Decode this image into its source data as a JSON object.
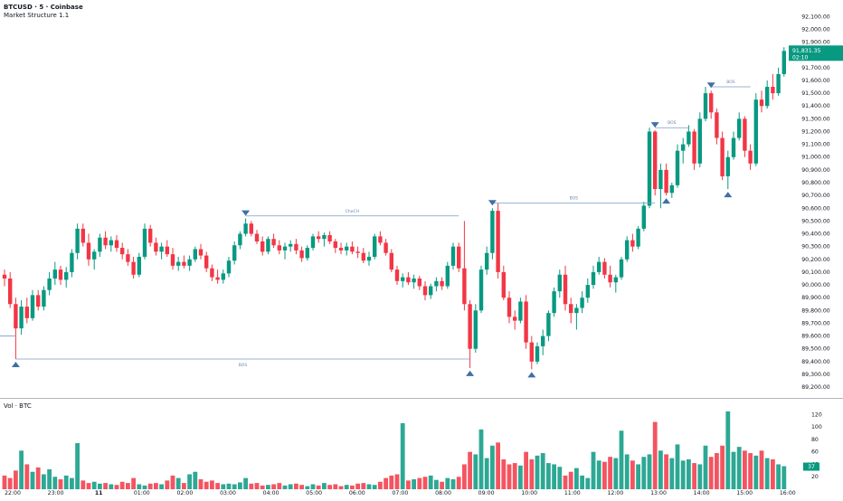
{
  "header": {
    "title": "BTCUSD · 5 · Coinbase",
    "indicator": "Market Structure 1.1",
    "volume_label": "Vol · BTC"
  },
  "price_badge": {
    "value": "91,831.35",
    "countdown": "02:10",
    "price": 91831.35,
    "color": "#089981"
  },
  "volume_badge": {
    "value": "37",
    "volume": 37
  },
  "colors": {
    "up": "#089981",
    "down": "#f23645",
    "structure_line": "#7a9cc6",
    "marker": "#3f6fa8",
    "grid_text": "#131722"
  },
  "chart_data": [
    {
      "type": "candlestick",
      "symbol": "BTCUSD",
      "interval": "5",
      "exchange": "Coinbase",
      "y_axis": {
        "ticks": [
          "92,100.00",
          "92,000.00",
          "91,900.00",
          "91,800.00",
          "91,700.00",
          "91,600.00",
          "91,500.00",
          "91,400.00",
          "91,300.00",
          "91,200.00",
          "91,100.00",
          "91,000.00",
          "90,900.00",
          "90,800.00",
          "90,700.00",
          "90,600.00",
          "90,500.00",
          "90,400.00",
          "90,300.00",
          "90,200.00",
          "90,100.00",
          "90,000.00",
          "89,900.00",
          "89,800.00",
          "89,700.00",
          "89,600.00",
          "89,500.00",
          "89,400.00",
          "89,300.00",
          "89,200.00"
        ],
        "range": [
          89130,
          92180
        ]
      },
      "x_axis": {
        "ticks": [
          "22:00",
          "23:00",
          "11",
          "01:00",
          "02:00",
          "03:00",
          "04:00",
          "05:00",
          "06:00",
          "07:00",
          "08:00",
          "09:00",
          "10:00",
          "11:00",
          "12:00",
          "13:00",
          "14:00",
          "15:00",
          "16:00"
        ]
      },
      "candles": [
        {
          "o": 90080,
          "h": 90120,
          "l": 89990,
          "c": 90050
        },
        {
          "o": 90050,
          "h": 90100,
          "l": 89820,
          "c": 89850
        },
        {
          "o": 89850,
          "h": 89900,
          "l": 89420,
          "c": 89660
        },
        {
          "o": 89660,
          "h": 89880,
          "l": 89610,
          "c": 89830
        },
        {
          "o": 89830,
          "h": 89900,
          "l": 89700,
          "c": 89740
        },
        {
          "o": 89740,
          "h": 89960,
          "l": 89720,
          "c": 89920
        },
        {
          "o": 89920,
          "h": 89960,
          "l": 89800,
          "c": 89830
        },
        {
          "o": 89830,
          "h": 89990,
          "l": 89800,
          "c": 89960
        },
        {
          "o": 89960,
          "h": 90100,
          "l": 89920,
          "c": 90050
        },
        {
          "o": 90050,
          "h": 90180,
          "l": 90000,
          "c": 90120
        },
        {
          "o": 90120,
          "h": 90150,
          "l": 90000,
          "c": 90040
        },
        {
          "o": 90040,
          "h": 90140,
          "l": 89980,
          "c": 90100
        },
        {
          "o": 90100,
          "h": 90280,
          "l": 90060,
          "c": 90250
        },
        {
          "o": 90250,
          "h": 90480,
          "l": 90200,
          "c": 90440
        },
        {
          "o": 90440,
          "h": 90480,
          "l": 90300,
          "c": 90330
        },
        {
          "o": 90330,
          "h": 90400,
          "l": 90150,
          "c": 90200
        },
        {
          "o": 90200,
          "h": 90280,
          "l": 90120,
          "c": 90260
        },
        {
          "o": 90260,
          "h": 90400,
          "l": 90220,
          "c": 90370
        },
        {
          "o": 90370,
          "h": 90420,
          "l": 90280,
          "c": 90310
        },
        {
          "o": 90310,
          "h": 90380,
          "l": 90260,
          "c": 90350
        },
        {
          "o": 90350,
          "h": 90390,
          "l": 90260,
          "c": 90290
        },
        {
          "o": 90290,
          "h": 90330,
          "l": 90200,
          "c": 90240
        },
        {
          "o": 90240,
          "h": 90280,
          "l": 90150,
          "c": 90180
        },
        {
          "o": 90180,
          "h": 90220,
          "l": 90050,
          "c": 90080
        },
        {
          "o": 90080,
          "h": 90250,
          "l": 90060,
          "c": 90220
        },
        {
          "o": 90220,
          "h": 90480,
          "l": 90200,
          "c": 90440
        },
        {
          "o": 90440,
          "h": 90470,
          "l": 90300,
          "c": 90330
        },
        {
          "o": 90330,
          "h": 90370,
          "l": 90230,
          "c": 90260
        },
        {
          "o": 90260,
          "h": 90330,
          "l": 90200,
          "c": 90300
        },
        {
          "o": 90300,
          "h": 90350,
          "l": 90220,
          "c": 90240
        },
        {
          "o": 90240,
          "h": 90290,
          "l": 90120,
          "c": 90150
        },
        {
          "o": 90150,
          "h": 90220,
          "l": 90110,
          "c": 90180
        },
        {
          "o": 90180,
          "h": 90230,
          "l": 90130,
          "c": 90150
        },
        {
          "o": 90150,
          "h": 90230,
          "l": 90110,
          "c": 90200
        },
        {
          "o": 90200,
          "h": 90300,
          "l": 90180,
          "c": 90280
        },
        {
          "o": 90280,
          "h": 90320,
          "l": 90200,
          "c": 90230
        },
        {
          "o": 90230,
          "h": 90260,
          "l": 90100,
          "c": 90130
        },
        {
          "o": 90130,
          "h": 90160,
          "l": 90030,
          "c": 90060
        },
        {
          "o": 90060,
          "h": 90120,
          "l": 90010,
          "c": 90040
        },
        {
          "o": 90040,
          "h": 90120,
          "l": 90010,
          "c": 90090
        },
        {
          "o": 90090,
          "h": 90220,
          "l": 90060,
          "c": 90190
        },
        {
          "o": 90190,
          "h": 90340,
          "l": 90160,
          "c": 90310
        },
        {
          "o": 90310,
          "h": 90420,
          "l": 90280,
          "c": 90400
        },
        {
          "o": 90400,
          "h": 90520,
          "l": 90380,
          "c": 90480
        },
        {
          "o": 90480,
          "h": 90500,
          "l": 90380,
          "c": 90400
        },
        {
          "o": 90400,
          "h": 90430,
          "l": 90320,
          "c": 90340
        },
        {
          "o": 90340,
          "h": 90380,
          "l": 90230,
          "c": 90260
        },
        {
          "o": 90260,
          "h": 90380,
          "l": 90240,
          "c": 90360
        },
        {
          "o": 90360,
          "h": 90400,
          "l": 90290,
          "c": 90310
        },
        {
          "o": 90310,
          "h": 90350,
          "l": 90240,
          "c": 90270
        },
        {
          "o": 90270,
          "h": 90330,
          "l": 90200,
          "c": 90300
        },
        {
          "o": 90300,
          "h": 90350,
          "l": 90260,
          "c": 90320
        },
        {
          "o": 90320,
          "h": 90360,
          "l": 90240,
          "c": 90270
        },
        {
          "o": 90270,
          "h": 90300,
          "l": 90180,
          "c": 90210
        },
        {
          "o": 90210,
          "h": 90310,
          "l": 90190,
          "c": 90290
        },
        {
          "o": 90290,
          "h": 90400,
          "l": 90270,
          "c": 90380
        },
        {
          "o": 90380,
          "h": 90420,
          "l": 90330,
          "c": 90360
        },
        {
          "o": 90360,
          "h": 90410,
          "l": 90300,
          "c": 90390
        },
        {
          "o": 90390,
          "h": 90420,
          "l": 90320,
          "c": 90340
        },
        {
          "o": 90340,
          "h": 90360,
          "l": 90250,
          "c": 90290
        },
        {
          "o": 90290,
          "h": 90330,
          "l": 90240,
          "c": 90270
        },
        {
          "o": 90270,
          "h": 90330,
          "l": 90230,
          "c": 90300
        },
        {
          "o": 90300,
          "h": 90340,
          "l": 90240,
          "c": 90260
        },
        {
          "o": 90260,
          "h": 90300,
          "l": 90210,
          "c": 90250
        },
        {
          "o": 90250,
          "h": 90290,
          "l": 90170,
          "c": 90190
        },
        {
          "o": 90190,
          "h": 90260,
          "l": 90150,
          "c": 90220
        },
        {
          "o": 90220,
          "h": 90400,
          "l": 90200,
          "c": 90380
        },
        {
          "o": 90380,
          "h": 90420,
          "l": 90310,
          "c": 90330
        },
        {
          "o": 90330,
          "h": 90360,
          "l": 90230,
          "c": 90250
        },
        {
          "o": 90250,
          "h": 90280,
          "l": 90100,
          "c": 90120
        },
        {
          "o": 90120,
          "h": 90150,
          "l": 90000,
          "c": 90030
        },
        {
          "o": 90030,
          "h": 90090,
          "l": 89980,
          "c": 90060
        },
        {
          "o": 90060,
          "h": 90100,
          "l": 90000,
          "c": 90020
        },
        {
          "o": 90020,
          "h": 90080,
          "l": 89970,
          "c": 90050
        },
        {
          "o": 90050,
          "h": 90070,
          "l": 89960,
          "c": 89990
        },
        {
          "o": 89990,
          "h": 90030,
          "l": 89880,
          "c": 89920
        },
        {
          "o": 89920,
          "h": 90010,
          "l": 89890,
          "c": 89990
        },
        {
          "o": 89990,
          "h": 90060,
          "l": 89950,
          "c": 90030
        },
        {
          "o": 90030,
          "h": 90060,
          "l": 89960,
          "c": 89990
        },
        {
          "o": 89990,
          "h": 90180,
          "l": 89970,
          "c": 90150
        },
        {
          "o": 90150,
          "h": 90330,
          "l": 90120,
          "c": 90300
        },
        {
          "o": 90300,
          "h": 90330,
          "l": 90100,
          "c": 90130
        },
        {
          "o": 90130,
          "h": 90500,
          "l": 89800,
          "c": 89850
        },
        {
          "o": 89850,
          "h": 89880,
          "l": 89350,
          "c": 89500
        },
        {
          "o": 89500,
          "h": 89850,
          "l": 89470,
          "c": 89800
        },
        {
          "o": 89800,
          "h": 90150,
          "l": 89780,
          "c": 90120
        },
        {
          "o": 90120,
          "h": 90300,
          "l": 90080,
          "c": 90250
        },
        {
          "o": 90250,
          "h": 90600,
          "l": 90200,
          "c": 90580
        },
        {
          "o": 90580,
          "h": 90640,
          "l": 90050,
          "c": 90100
        },
        {
          "o": 90100,
          "h": 90150,
          "l": 89880,
          "c": 89900
        },
        {
          "o": 89900,
          "h": 89950,
          "l": 89700,
          "c": 89750
        },
        {
          "o": 89750,
          "h": 89800,
          "l": 89650,
          "c": 89720
        },
        {
          "o": 89720,
          "h": 89900,
          "l": 89700,
          "c": 89870
        },
        {
          "o": 89870,
          "h": 89920,
          "l": 89500,
          "c": 89550
        },
        {
          "o": 89550,
          "h": 89600,
          "l": 89340,
          "c": 89400
        },
        {
          "o": 89400,
          "h": 89550,
          "l": 89380,
          "c": 89520
        },
        {
          "o": 89520,
          "h": 89650,
          "l": 89450,
          "c": 89600
        },
        {
          "o": 89600,
          "h": 89800,
          "l": 89560,
          "c": 89780
        },
        {
          "o": 89780,
          "h": 89980,
          "l": 89750,
          "c": 89950
        },
        {
          "o": 89950,
          "h": 90120,
          "l": 89900,
          "c": 90080
        },
        {
          "o": 90080,
          "h": 90150,
          "l": 89800,
          "c": 89850
        },
        {
          "o": 89850,
          "h": 89900,
          "l": 89700,
          "c": 89780
        },
        {
          "o": 89780,
          "h": 89850,
          "l": 89650,
          "c": 89820
        },
        {
          "o": 89820,
          "h": 89950,
          "l": 89780,
          "c": 89900
        },
        {
          "o": 89900,
          "h": 90050,
          "l": 89860,
          "c": 90000
        },
        {
          "o": 90000,
          "h": 90150,
          "l": 89970,
          "c": 90100
        },
        {
          "o": 90100,
          "h": 90220,
          "l": 90080,
          "c": 90180
        },
        {
          "o": 90180,
          "h": 90210,
          "l": 90050,
          "c": 90080
        },
        {
          "o": 90080,
          "h": 90150,
          "l": 89980,
          "c": 90020
        },
        {
          "o": 90020,
          "h": 90080,
          "l": 89940,
          "c": 90060
        },
        {
          "o": 90060,
          "h": 90220,
          "l": 90040,
          "c": 90200
        },
        {
          "o": 90200,
          "h": 90380,
          "l": 90180,
          "c": 90350
        },
        {
          "o": 90350,
          "h": 90400,
          "l": 90260,
          "c": 90300
        },
        {
          "o": 90300,
          "h": 90460,
          "l": 90280,
          "c": 90440
        },
        {
          "o": 90440,
          "h": 90650,
          "l": 90420,
          "c": 90620
        },
        {
          "o": 90620,
          "h": 91230,
          "l": 90600,
          "c": 91200
        },
        {
          "o": 91200,
          "h": 91210,
          "l": 90700,
          "c": 90750
        },
        {
          "o": 90750,
          "h": 90950,
          "l": 90600,
          "c": 90900
        },
        {
          "o": 90900,
          "h": 90950,
          "l": 90700,
          "c": 90720
        },
        {
          "o": 90720,
          "h": 90800,
          "l": 90680,
          "c": 90780
        },
        {
          "o": 90780,
          "h": 91100,
          "l": 90760,
          "c": 91050
        },
        {
          "o": 91050,
          "h": 91150,
          "l": 90950,
          "c": 91100
        },
        {
          "o": 91100,
          "h": 91250,
          "l": 91080,
          "c": 91200
        },
        {
          "o": 91200,
          "h": 91220,
          "l": 90900,
          "c": 90950
        },
        {
          "o": 90950,
          "h": 91350,
          "l": 90920,
          "c": 91300
        },
        {
          "o": 91300,
          "h": 91550,
          "l": 91280,
          "c": 91500
        },
        {
          "o": 91500,
          "h": 91520,
          "l": 91300,
          "c": 91350
        },
        {
          "o": 91350,
          "h": 91380,
          "l": 91100,
          "c": 91150
        },
        {
          "o": 91150,
          "h": 91200,
          "l": 90820,
          "c": 90850
        },
        {
          "o": 90850,
          "h": 91050,
          "l": 90750,
          "c": 91000
        },
        {
          "o": 91000,
          "h": 91200,
          "l": 90980,
          "c": 91150
        },
        {
          "o": 91150,
          "h": 91350,
          "l": 91130,
          "c": 91300
        },
        {
          "o": 91300,
          "h": 91320,
          "l": 91000,
          "c": 91050
        },
        {
          "o": 91050,
          "h": 91100,
          "l": 90900,
          "c": 90950
        },
        {
          "o": 90950,
          "h": 91500,
          "l": 90930,
          "c": 91450
        },
        {
          "o": 91450,
          "h": 91520,
          "l": 91350,
          "c": 91400
        },
        {
          "o": 91400,
          "h": 91600,
          "l": 91380,
          "c": 91550
        },
        {
          "o": 91550,
          "h": 91650,
          "l": 91450,
          "c": 91500
        },
        {
          "o": 91500,
          "h": 91700,
          "l": 91480,
          "c": 91650
        },
        {
          "o": 91650,
          "h": 91860,
          "l": 91630,
          "c": 91831
        }
      ],
      "structure": [
        {
          "label": "BOS",
          "price": 89420,
          "from": 2,
          "to": 83
        },
        {
          "label": "ChoCH",
          "price": 90540,
          "from": 43,
          "to": 81
        },
        {
          "label": "BOS",
          "price": 90640,
          "from": 87,
          "to": 116
        },
        {
          "label": "BOS",
          "price": 91230,
          "from": 116,
          "to": 122
        },
        {
          "label": "BOS",
          "price": 91550,
          "from": 126,
          "to": 133
        }
      ],
      "highs": [
        43,
        87,
        116,
        126
      ],
      "lows": [
        2,
        83,
        94,
        118,
        129
      ]
    },
    {
      "type": "bar",
      "name": "Vol · BTC",
      "y_axis": {
        "ticks": [
          "120",
          "100",
          "80",
          "60",
          "40",
          "20"
        ],
        "range": [
          0,
          135
        ]
      },
      "values": [
        22,
        18,
        30,
        62,
        40,
        28,
        35,
        24,
        32,
        20,
        16,
        22,
        18,
        74,
        14,
        10,
        12,
        9,
        10,
        8,
        7,
        12,
        10,
        18,
        8,
        6,
        9,
        10,
        8,
        14,
        22,
        18,
        10,
        24,
        28,
        16,
        12,
        14,
        10,
        8,
        9,
        8,
        11,
        18,
        9,
        10,
        6,
        7,
        8,
        10,
        6,
        8,
        9,
        7,
        5,
        8,
        6,
        10,
        7,
        8,
        5,
        7,
        6,
        9,
        10,
        8,
        7,
        12,
        18,
        22,
        24,
        106,
        14,
        16,
        18,
        20,
        22,
        15,
        12,
        18,
        16,
        20,
        40,
        60,
        56,
        96,
        50,
        70,
        75,
        48,
        40,
        42,
        38,
        60,
        48,
        54,
        58,
        42,
        40,
        36,
        22,
        28,
        34,
        22,
        18,
        60,
        46,
        44,
        52,
        50,
        94,
        56,
        46,
        40,
        52,
        56,
        108,
        62,
        56,
        50,
        72,
        46,
        48,
        42,
        40,
        70,
        52,
        58,
        70,
        125,
        60,
        68,
        62,
        58,
        54,
        62,
        50,
        48,
        40,
        37
      ]
    }
  ]
}
